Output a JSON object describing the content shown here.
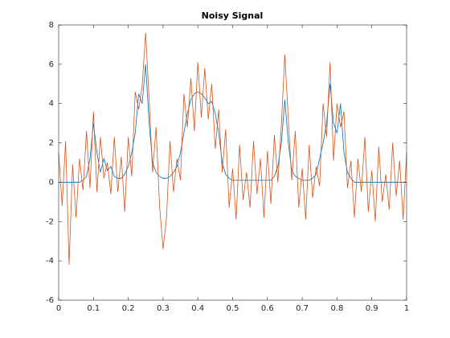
{
  "chart_data": {
    "type": "line",
    "title": "Noisy Signal",
    "x": [
      0,
      0.01,
      0.02,
      0.03,
      0.04,
      0.05,
      0.06,
      0.07,
      0.08,
      0.09,
      0.1,
      0.11,
      0.12,
      0.13,
      0.14,
      0.15,
      0.16,
      0.17,
      0.18,
      0.19,
      0.2,
      0.21,
      0.22,
      0.23,
      0.24,
      0.25,
      0.26,
      0.27,
      0.28,
      0.29,
      0.3,
      0.31,
      0.32,
      0.33,
      0.34,
      0.35,
      0.36,
      0.37,
      0.38,
      0.39,
      0.4,
      0.41,
      0.42,
      0.43,
      0.44,
      0.45,
      0.46,
      0.47,
      0.48,
      0.49,
      0.5,
      0.51,
      0.52,
      0.53,
      0.54,
      0.55,
      0.56,
      0.57,
      0.58,
      0.59,
      0.6,
      0.61,
      0.62,
      0.63,
      0.64,
      0.65,
      0.66,
      0.67,
      0.68,
      0.69,
      0.7,
      0.71,
      0.72,
      0.73,
      0.74,
      0.75,
      0.76,
      0.77,
      0.78,
      0.79,
      0.8,
      0.81,
      0.82,
      0.83,
      0.84,
      0.85,
      0.86,
      0.87,
      0.88,
      0.89,
      0.9,
      0.91,
      0.92,
      0.93,
      0.94,
      0.95,
      0.96,
      0.97,
      0.98,
      0.99,
      1
    ],
    "series": [
      {
        "color": "#0072bd",
        "values": [
          0,
          0,
          0,
          0,
          0,
          0,
          0,
          0.1,
          0.3,
          1.2,
          3.0,
          1.5,
          0.5,
          1.2,
          0.6,
          0.8,
          0.3,
          0.2,
          0.2,
          0.4,
          0.8,
          1.5,
          2.5,
          4.5,
          4.0,
          6.0,
          3.0,
          1.0,
          0.5,
          0.3,
          0.2,
          0.2,
          0.3,
          0.5,
          0.8,
          1.5,
          2.5,
          3.5,
          4.2,
          4.5,
          4.6,
          4.5,
          4.3,
          4.0,
          4.1,
          3.5,
          2.5,
          1.0,
          0.4,
          0.2,
          0.1,
          0.1,
          0.1,
          0.1,
          0.1,
          0.1,
          0.1,
          0.1,
          0.1,
          0.1,
          0.1,
          0.1,
          0.3,
          0.8,
          2.0,
          4.2,
          2.0,
          0.6,
          0.3,
          0.2,
          0.1,
          0.1,
          0.1,
          0.2,
          0.4,
          1.2,
          2.0,
          3.0,
          5.0,
          3.0,
          2.5,
          4.0,
          1.5,
          0.5,
          0.2,
          0,
          0,
          0,
          0,
          0,
          0,
          0,
          0,
          0,
          0,
          0,
          0,
          0,
          0,
          0,
          0
        ]
      },
      {
        "color": "#d95319",
        "values": [
          1.5,
          -1.2,
          2.1,
          -4.2,
          0.9,
          -1.8,
          1.2,
          -0.4,
          2.6,
          -0.3,
          3.6,
          -0.5,
          2.3,
          0.2,
          1.0,
          -0.6,
          2.3,
          -0.5,
          1.3,
          -1.5,
          2.3,
          0.3,
          4.6,
          3.7,
          4.9,
          7.6,
          4.2,
          0.5,
          2.8,
          -1.2,
          -3.4,
          -1.8,
          2.1,
          -0.5,
          1.2,
          0.1,
          4.5,
          2.8,
          5.3,
          2.6,
          6.1,
          3.3,
          5.8,
          3.2,
          5.0,
          1.7,
          3.7,
          0.5,
          2.7,
          -1.3,
          0.7,
          -1.9,
          1.9,
          -0.9,
          0.5,
          -1.3,
          2.1,
          -0.6,
          1.2,
          -1.8,
          1.6,
          -1.1,
          2.4,
          0,
          2.9,
          6.5,
          3.2,
          0.1,
          2.6,
          -1.3,
          0.7,
          -1.9,
          1.9,
          -0.8,
          0.8,
          -0.2,
          4.0,
          2.3,
          6.1,
          1.1,
          4.0,
          2.8,
          3.6,
          -0.3,
          1.1,
          -1.8,
          1.2,
          -0.5,
          2.3,
          -1.5,
          0.6,
          -2.0,
          1.8,
          -1.0,
          0.4,
          -1.4,
          2.0,
          -0.7,
          1.1,
          -1.9,
          1.5
        ]
      }
    ],
    "xlim": [
      0,
      1
    ],
    "xticks": [
      0,
      0.1,
      0.2,
      0.3,
      0.4,
      0.5,
      0.6,
      0.7,
      0.8,
      0.9,
      1
    ],
    "ylim": [
      -6,
      8
    ],
    "yticks": [
      -6,
      -4,
      -2,
      0,
      2,
      4,
      6,
      8
    ]
  }
}
